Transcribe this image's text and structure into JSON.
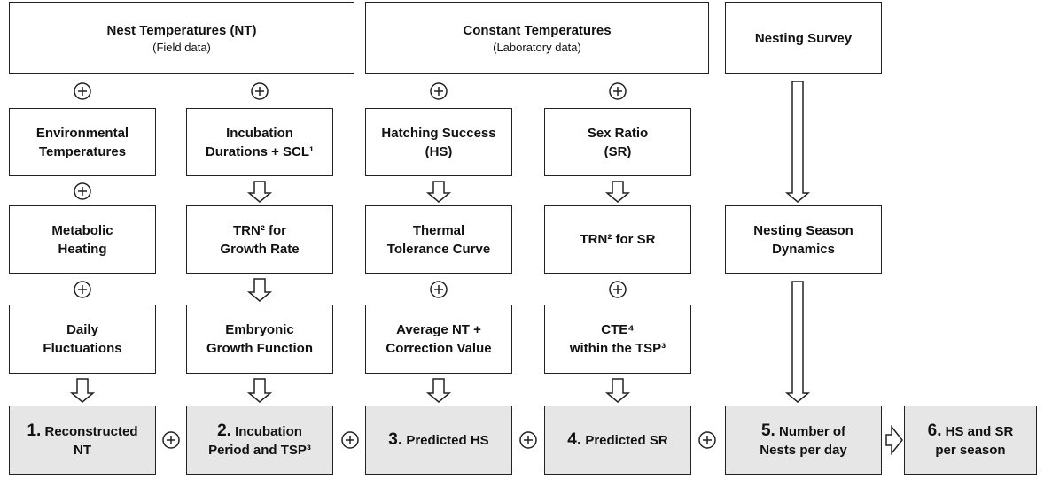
{
  "nodes": [
    {
      "lines": [
        "Nest Temperatures (NT)"
      ],
      "subtitle": "(Field data)"
    },
    {
      "lines": [
        "Constant Temperatures"
      ],
      "subtitle": "(Laboratory data)"
    },
    {
      "lines": [
        "Nesting Survey"
      ]
    },
    {
      "lines": [
        "Environmental",
        "Temperatures"
      ]
    },
    {
      "lines": [
        "Incubation",
        "Durations + SCL¹"
      ]
    },
    {
      "lines": [
        "Hatching Success",
        "(HS)"
      ]
    },
    {
      "lines": [
        "Sex Ratio",
        "(SR)"
      ]
    },
    {
      "lines": [
        "Metabolic",
        "Heating"
      ]
    },
    {
      "lines": [
        "TRN² for",
        "Growth Rate"
      ]
    },
    {
      "lines": [
        "Thermal",
        "Tolerance Curve"
      ]
    },
    {
      "lines": [
        "TRN² for SR"
      ]
    },
    {
      "lines": [
        "Nesting Season",
        "Dynamics"
      ]
    },
    {
      "lines": [
        "Daily",
        "Fluctuations"
      ]
    },
    {
      "lines": [
        "Embryonic",
        "Growth Function"
      ]
    },
    {
      "lines": [
        "Average NT +",
        "Correction Value"
      ]
    },
    {
      "lines": [
        "CTE⁴",
        "within the TSP³"
      ]
    }
  ],
  "outcomes": [
    {
      "number": "1.",
      "lines": [
        "Reconstructed",
        "NT"
      ]
    },
    {
      "number": "2.",
      "lines": [
        "Incubation",
        "Period and TSP³"
      ]
    },
    {
      "number": "3.",
      "lines": [
        "Predicted HS"
      ]
    },
    {
      "number": "4.",
      "lines": [
        "Predicted SR"
      ]
    },
    {
      "number": "5.",
      "lines": [
        "Number of",
        "Nests per day"
      ]
    },
    {
      "number": "6.",
      "lines": [
        "HS and SR",
        "per season"
      ]
    }
  ]
}
